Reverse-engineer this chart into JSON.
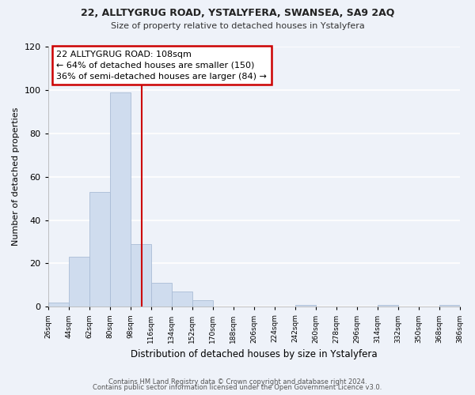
{
  "title": "22, ALLTYGRUG ROAD, YSTALYFERA, SWANSEA, SA9 2AQ",
  "subtitle": "Size of property relative to detached houses in Ystalyfera",
  "xlabel": "Distribution of detached houses by size in Ystalyfera",
  "ylabel": "Number of detached properties",
  "bar_color": "#cfdcee",
  "bar_edge_color": "#aabdd6",
  "bin_edges": [
    26,
    44,
    62,
    80,
    98,
    116,
    134,
    152,
    170,
    188,
    206,
    224,
    242,
    260,
    278,
    296,
    314,
    332,
    350,
    368,
    386
  ],
  "bar_heights": [
    2,
    23,
    53,
    99,
    29,
    11,
    7,
    3,
    0,
    0,
    0,
    0,
    1,
    0,
    0,
    0,
    1,
    0,
    0,
    1
  ],
  "red_line_x": 108,
  "annotation_title": "22 ALLTYGRUG ROAD: 108sqm",
  "annotation_line1": "← 64% of detached houses are smaller (150)",
  "annotation_line2": "36% of semi-detached houses are larger (84) →",
  "ylim": [
    0,
    120
  ],
  "yticks": [
    0,
    20,
    40,
    60,
    80,
    100,
    120
  ],
  "tick_labels": [
    "26sqm",
    "44sqm",
    "62sqm",
    "80sqm",
    "98sqm",
    "116sqm",
    "134sqm",
    "152sqm",
    "170sqm",
    "188sqm",
    "206sqm",
    "224sqm",
    "242sqm",
    "260sqm",
    "278sqm",
    "296sqm",
    "314sqm",
    "332sqm",
    "350sqm",
    "368sqm",
    "386sqm"
  ],
  "footnote1": "Contains HM Land Registry data © Crown copyright and database right 2024.",
  "footnote2": "Contains public sector information licensed under the Open Government Licence v3.0.",
  "bg_color": "#eef2f9",
  "grid_color": "#ffffff",
  "annotation_box_color": "#ffffff",
  "annotation_box_edge": "#cc0000",
  "red_line_color": "#cc0000"
}
